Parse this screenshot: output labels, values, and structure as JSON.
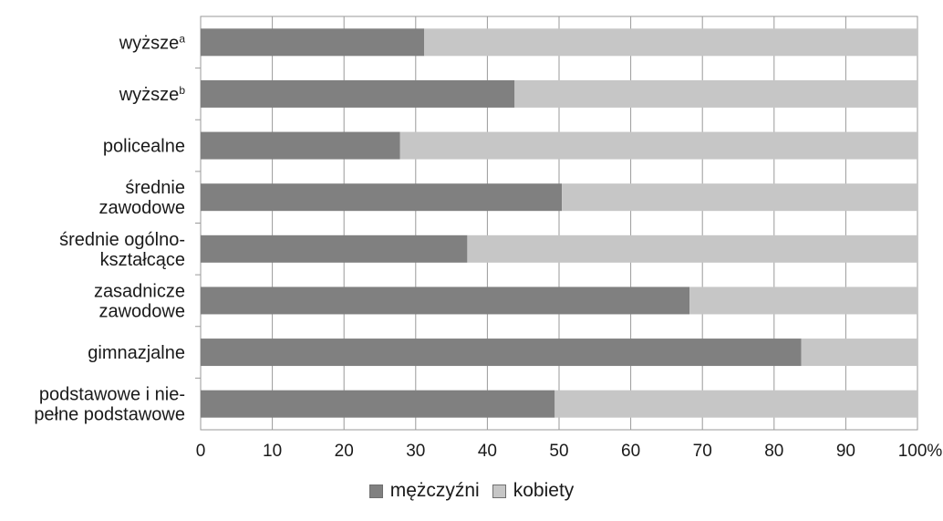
{
  "chart_data": {
    "type": "bar",
    "orientation": "horizontal",
    "stacked": true,
    "categories": [
      {
        "lines": [
          "wyższe"
        ],
        "sup": "a"
      },
      {
        "lines": [
          "wyższe"
        ],
        "sup": "b"
      },
      {
        "lines": [
          "policealne"
        ],
        "sup": ""
      },
      {
        "lines": [
          "średnie",
          "zawodowe"
        ],
        "sup": ""
      },
      {
        "lines": [
          "średnie ogólno-",
          "kształcące"
        ],
        "sup": ""
      },
      {
        "lines": [
          "zasadnicze",
          "zawodowe"
        ],
        "sup": ""
      },
      {
        "lines": [
          "gimnazjalne"
        ],
        "sup": ""
      },
      {
        "lines": [
          "podstawowe i nie-",
          "pełne podstawowe"
        ],
        "sup": ""
      }
    ],
    "series": [
      {
        "name": "mężczyźni",
        "color": "#808080",
        "values": [
          31.2,
          43.8,
          27.8,
          50.4,
          37.2,
          68.2,
          83.8,
          49.4
        ]
      },
      {
        "name": "kobiety",
        "color": "#c6c6c6",
        "values": [
          68.8,
          56.2,
          72.2,
          49.6,
          62.8,
          31.8,
          16.2,
          50.6
        ]
      }
    ],
    "xlim": [
      0,
      100
    ],
    "xticks": [
      "0",
      "10",
      "20",
      "30",
      "40",
      "50",
      "60",
      "70",
      "80",
      "90",
      "100%"
    ],
    "grid": true,
    "legend_position": "bottom"
  }
}
